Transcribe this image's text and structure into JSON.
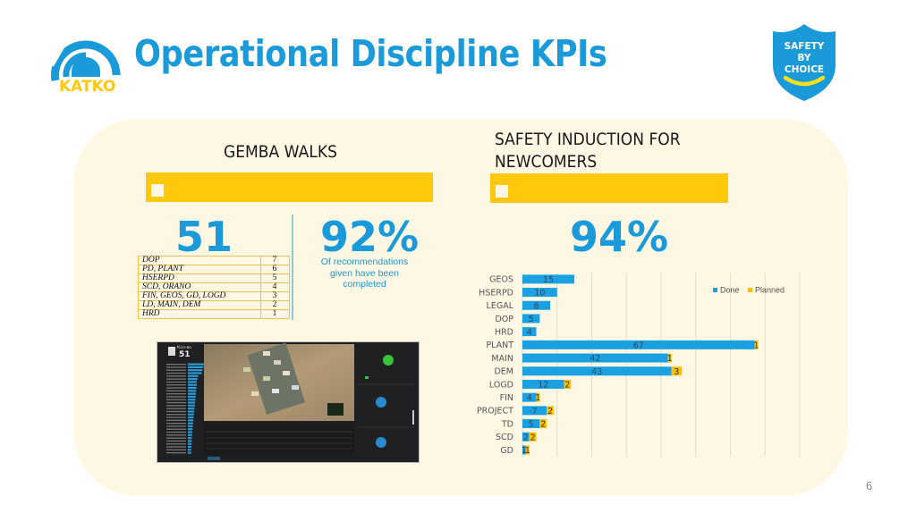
{
  "header": {
    "title": "Operational Discipline KPIs",
    "logo_text": "KATKO",
    "badge_lines": [
      "SAFETY",
      "BY",
      "CHOICE"
    ]
  },
  "colors": {
    "brand_blue": "#1a9ad8",
    "accent_yellow": "#ffc80a",
    "panel_bg": "#fdf7e4"
  },
  "gemba": {
    "title": "GEMBA WALKS",
    "count": "51",
    "completion": "92%",
    "completion_note": "Of recommendations given have been completed",
    "departments": [
      {
        "name": "DOP",
        "value": "7"
      },
      {
        "name": "PD, PLANT",
        "value": "6"
      },
      {
        "name": "HSERPD",
        "value": "5"
      },
      {
        "name": "SCD, ORANO",
        "value": "4"
      },
      {
        "name": "FIN, GEOS, GD, LOGD",
        "value": "3"
      },
      {
        "name": "LD, MAIN, DEM",
        "value": "2"
      },
      {
        "name": "HRD",
        "value": "1"
      }
    ],
    "dashboard": {
      "header_label": "Кол-во",
      "header_count": "51"
    }
  },
  "induction": {
    "title_line1": "SAFETY INDUCTION FOR",
    "title_line2": "NEWCOMERS",
    "completion": "94%"
  },
  "chart_data": {
    "type": "bar",
    "orientation": "horizontal",
    "stacked": true,
    "title": "",
    "xlabel": "",
    "ylabel": "",
    "xlim": [
      0,
      80
    ],
    "grid": true,
    "legend": "top-right",
    "categories": [
      "GEOS",
      "HSERPD",
      "LEGAL",
      "DOP",
      "HRD",
      "PLANT",
      "MAIN",
      "DEM",
      "LOGD",
      "FIN",
      "PROJECT",
      "TD",
      "SCD",
      "GD"
    ],
    "series": [
      {
        "name": "Done",
        "color": "#1ba1e2",
        "values": [
          15,
          10,
          8,
          5,
          4,
          67,
          42,
          43,
          12,
          4,
          7,
          5,
          2,
          1
        ]
      },
      {
        "name": "Planned",
        "color": "#ffc000",
        "values": [
          0,
          0,
          0,
          0,
          0,
          1,
          1,
          3,
          2,
          1,
          2,
          2,
          2,
          1
        ]
      }
    ]
  },
  "footer": {
    "page_number": "6"
  }
}
